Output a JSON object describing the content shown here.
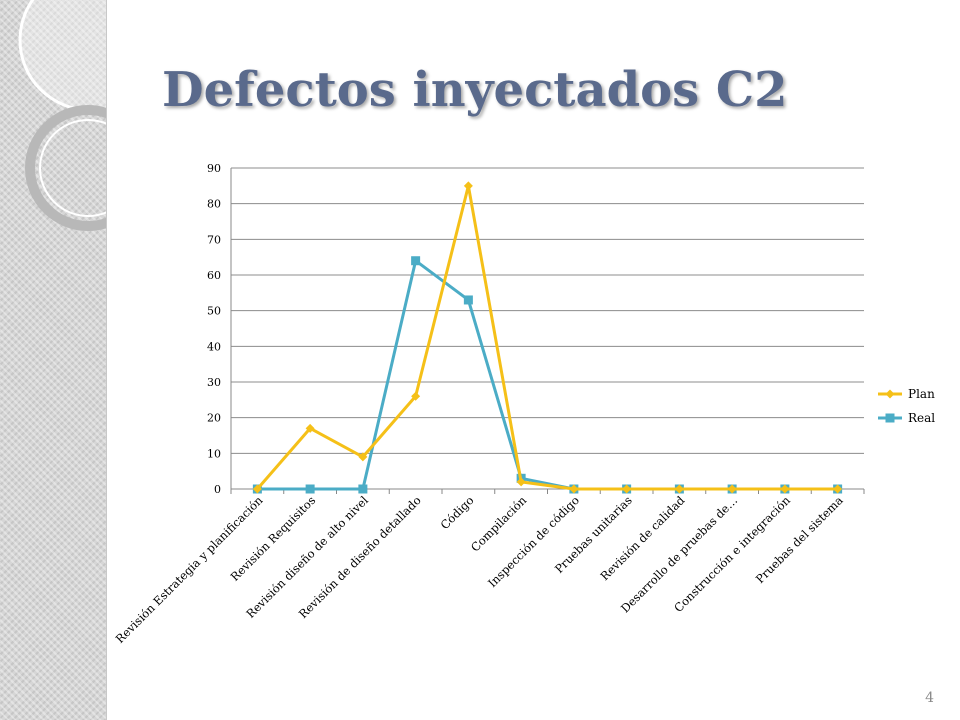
{
  "slide": {
    "title": "Defectos inyectados C2",
    "number": "4"
  },
  "colors": {
    "plan": "#f5c018",
    "real": "#4bacc6",
    "title": "#5a6a8c"
  },
  "chart_data": {
    "type": "line",
    "title": "",
    "xlabel": "",
    "ylabel": "",
    "ylim": [
      0,
      90
    ],
    "yticks": [
      0,
      10,
      20,
      30,
      40,
      50,
      60,
      70,
      80,
      90
    ],
    "grid": true,
    "legend_position": "right",
    "categories": [
      "Revisión Estrategia y planificación",
      "Revisión Requisitos",
      "Revisión diseño de alto nivel",
      "Revisión de diseño detallado",
      "Código",
      "Compilación",
      "Inspección de código",
      "Pruebas unitarias",
      "Revisión de calidad",
      "Desarrollo de pruebas de…",
      "Construcción e integración",
      "Pruebas del sistema"
    ],
    "series": [
      {
        "name": "Plan",
        "marker": "diamond",
        "values": [
          0,
          17,
          9,
          26,
          85,
          2,
          0,
          0,
          0,
          0,
          0,
          0
        ]
      },
      {
        "name": "Real",
        "marker": "square",
        "values": [
          0,
          0,
          0,
          64,
          53,
          3,
          0,
          0,
          0,
          0,
          0,
          0
        ]
      }
    ]
  }
}
